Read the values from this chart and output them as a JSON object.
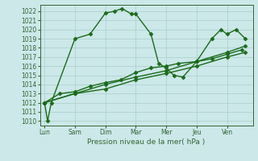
{
  "xlabel": "Pression niveau de la mer( hPa )",
  "background_color": "#cce8e8",
  "grid_color": "#aacccc",
  "line_color": "#1a6b1a",
  "ylim": [
    1009.5,
    1022.7
  ],
  "yticks": [
    1010,
    1011,
    1012,
    1013,
    1014,
    1015,
    1016,
    1017,
    1018,
    1019,
    1020,
    1021,
    1022
  ],
  "xtick_labels": [
    "Lun",
    "Sam",
    "Dim",
    "Mar",
    "Mer",
    "Jeu",
    "Ven"
  ],
  "xtick_positions": [
    0,
    1,
    2,
    3,
    4,
    5,
    6
  ],
  "xlim": [
    -0.15,
    6.85
  ],
  "marker": "D",
  "marker_size": 2.5,
  "linewidth": 1.0,
  "series": [
    {
      "x": [
        0,
        0.1,
        0.22,
        1.0,
        1.5,
        2.0,
        2.3,
        2.55,
        2.85,
        3.0,
        3.5,
        3.75,
        4.0,
        4.25,
        4.55,
        5.0,
        5.5,
        5.8,
        6.0,
        6.3,
        6.6
      ],
      "y": [
        1012.0,
        1010.0,
        1012.0,
        1019.0,
        1019.5,
        1021.8,
        1022.0,
        1022.3,
        1021.7,
        1021.7,
        1019.5,
        1016.3,
        1015.8,
        1015.0,
        1014.8,
        1016.5,
        1019.0,
        1020.0,
        1019.5,
        1020.0,
        1019.0
      ]
    },
    {
      "x": [
        0,
        0.5,
        1.0,
        1.5,
        2.0,
        2.5,
        3.0,
        3.5,
        4.0,
        4.4,
        5.0,
        5.5,
        6.0,
        6.5
      ],
      "y": [
        1012.0,
        1013.0,
        1013.2,
        1013.8,
        1014.2,
        1014.5,
        1015.3,
        1015.8,
        1016.0,
        1016.3,
        1016.5,
        1016.8,
        1017.3,
        1017.8
      ]
    },
    {
      "x": [
        0,
        1.0,
        2.0,
        3.0,
        4.0,
        5.0,
        6.0,
        6.6
      ],
      "y": [
        1012.0,
        1013.0,
        1013.5,
        1014.5,
        1015.2,
        1016.0,
        1017.0,
        1017.5
      ]
    },
    {
      "x": [
        0,
        1.0,
        2.0,
        3.0,
        4.0,
        5.0,
        6.0,
        6.6
      ],
      "y": [
        1012.0,
        1013.0,
        1014.0,
        1014.8,
        1015.5,
        1016.5,
        1017.5,
        1018.2
      ]
    }
  ]
}
